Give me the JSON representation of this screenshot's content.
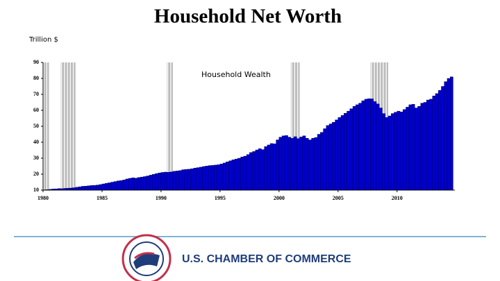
{
  "chart_data": {
    "type": "bar",
    "title": "Household Net Worth",
    "y_label": "Trillion $",
    "annotation": "Household Wealth",
    "x": [
      1980,
      1980.25,
      1980.5,
      1980.75,
      1981,
      1981.25,
      1981.5,
      1981.75,
      1982,
      1982.25,
      1982.5,
      1982.75,
      1983,
      1983.25,
      1983.5,
      1983.75,
      1984,
      1984.25,
      1984.5,
      1984.75,
      1985,
      1985.25,
      1985.5,
      1985.75,
      1986,
      1986.25,
      1986.5,
      1986.75,
      1987,
      1987.25,
      1987.5,
      1987.75,
      1988,
      1988.25,
      1988.5,
      1988.75,
      1989,
      1989.25,
      1989.5,
      1989.75,
      1990,
      1990.25,
      1990.5,
      1990.75,
      1991,
      1991.25,
      1991.5,
      1991.75,
      1992,
      1992.25,
      1992.5,
      1992.75,
      1993,
      1993.25,
      1993.5,
      1993.75,
      1994,
      1994.25,
      1994.5,
      1994.75,
      1995,
      1995.25,
      1995.5,
      1995.75,
      1996,
      1996.25,
      1996.5,
      1996.75,
      1997,
      1997.25,
      1997.5,
      1997.75,
      1998,
      1998.25,
      1998.5,
      1998.75,
      1999,
      1999.25,
      1999.5,
      1999.75,
      2000,
      2000.25,
      2000.5,
      2000.75,
      2001,
      2001.25,
      2001.5,
      2001.75,
      2002,
      2002.25,
      2002.5,
      2002.75,
      2003,
      2003.25,
      2003.5,
      2003.75,
      2004,
      2004.25,
      2004.5,
      2004.75,
      2005,
      2005.25,
      2005.5,
      2005.75,
      2006,
      2006.25,
      2006.5,
      2006.75,
      2007,
      2007.25,
      2007.5,
      2007.75,
      2008,
      2008.25,
      2008.5,
      2008.75,
      2009,
      2009.25,
      2009.5,
      2009.75,
      2010,
      2010.25,
      2010.5,
      2010.75,
      2011,
      2011.25,
      2011.5,
      2011.75,
      2012,
      2012.25,
      2012.5,
      2012.75,
      2013,
      2013.25,
      2013.5,
      2013.75,
      2014,
      2014.25,
      2014.5
    ],
    "values": [
      10.2,
      10.3,
      10.5,
      10.7,
      10.8,
      11.0,
      10.9,
      11.1,
      11.2,
      11.3,
      11.5,
      11.8,
      12.1,
      12.4,
      12.5,
      12.7,
      12.9,
      13.0,
      13.2,
      13.5,
      13.9,
      14.3,
      14.6,
      15.0,
      15.4,
      15.8,
      16.0,
      16.4,
      17.0,
      17.4,
      17.7,
      17.5,
      17.9,
      18.2,
      18.5,
      18.9,
      19.4,
      19.9,
      20.4,
      20.8,
      21.1,
      21.3,
      21.2,
      21.4,
      21.8,
      22.0,
      22.3,
      22.8,
      23.0,
      23.1,
      23.4,
      23.8,
      24.1,
      24.4,
      24.8,
      25.1,
      25.4,
      25.5,
      25.7,
      25.9,
      26.4,
      27.0,
      27.7,
      28.4,
      29.0,
      29.5,
      30.0,
      30.8,
      31.3,
      32.3,
      33.6,
      34.2,
      35.2,
      36.0,
      35.4,
      37.3,
      38.3,
      39.2,
      39.0,
      41.5,
      43.2,
      44.0,
      44.2,
      43.2,
      42.5,
      43.5,
      42.3,
      43.3,
      44.0,
      42.5,
      41.5,
      42.5,
      43.0,
      45.0,
      46.2,
      48.5,
      50.5,
      51.5,
      52.5,
      54.0,
      55.5,
      56.8,
      58.2,
      59.5,
      61.0,
      62.5,
      63.5,
      64.5,
      66.0,
      67.0,
      67.3,
      67.2,
      65.5,
      64.0,
      61.5,
      58.0,
      55.5,
      56.5,
      58.0,
      58.8,
      59.5,
      59.0,
      60.5,
      62.0,
      63.5,
      63.8,
      61.5,
      62.5,
      64.5,
      65.0,
      66.5,
      67.0,
      69.0,
      70.5,
      72.5,
      75.0,
      78.0,
      80.0,
      81.0
    ],
    "bar_width": 0.25,
    "color": "#0000cc",
    "recessions": [
      [
        1980,
        1980.5
      ],
      [
        1981.5,
        1982.75
      ],
      [
        1990.5,
        1991.0
      ],
      [
        2001.0,
        2001.75
      ],
      [
        2007.75,
        2009.25
      ]
    ],
    "recession_color": "#bbbbbb",
    "xlim": [
      1980,
      2014.9
    ],
    "xticks": [
      1980,
      1985,
      1990,
      1995,
      2000,
      2005,
      2010
    ],
    "ylim": [
      10,
      90
    ],
    "yticks": [
      10,
      20,
      30,
      40,
      50,
      60,
      70,
      80,
      90
    ]
  },
  "footer": {
    "org": "U.S. CHAMBER OF COMMERCE"
  }
}
